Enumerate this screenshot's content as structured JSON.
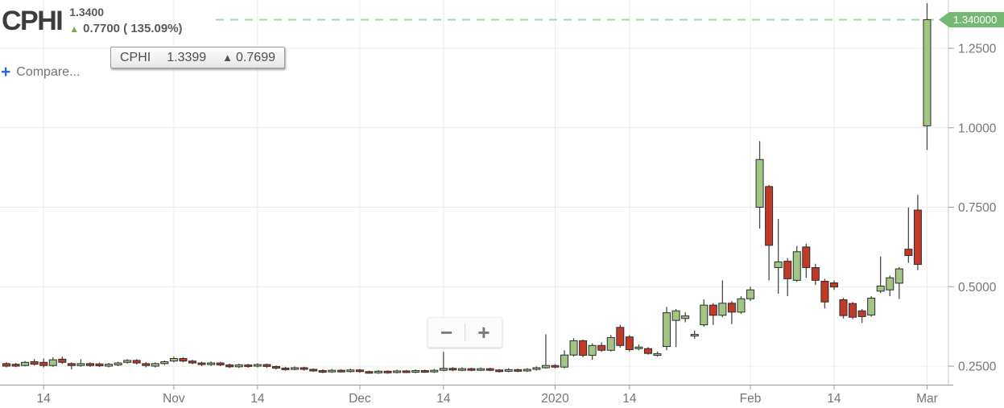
{
  "header": {
    "symbol": "CPHI",
    "price": "1.3400",
    "change_arrow": "▲",
    "change": "0.7700 ( 135.09%)"
  },
  "tooltip": {
    "symbol": "CPHI",
    "price": "1.3399",
    "arrow": "▲",
    "change": "0.7699"
  },
  "compare": {
    "plus_icon": "+",
    "label": "Compare..."
  },
  "zoom_controls": {
    "zoom_out_label": "−",
    "zoom_in_label": "+"
  },
  "price_badge": {
    "text": "1.340000"
  },
  "colors": {
    "up_fill": "#a2c585",
    "down_fill": "#c03a27",
    "candle_border": "#2d2d2d",
    "wick": "#4a4a4a",
    "grid": "#ececec",
    "axis_line": "#9a9a9a",
    "axis_text": "#757575",
    "plot_border": "#c9c9c9",
    "dashed_line": "#a8d5a8",
    "badge_bg": "#74b874",
    "badge_text": "#ffffff",
    "header_arrow_green": "#76b043",
    "compare_plus_blue": "#2a66dd"
  },
  "chart_data": {
    "type": "candlestick",
    "title": "CPHI daily price chart, Oct 2019 - Mar 2020",
    "series_name": "CPHI",
    "current_price": 1.34,
    "current_price_label": "1.340000",
    "grid": true,
    "y_axis": {
      "side": "right",
      "tick_values": [
        1.25,
        1.0,
        0.75,
        0.5,
        0.25
      ],
      "tick_labels": [
        "1.2500",
        "1.0000",
        "0.7500",
        "0.5000",
        "0.2500"
      ],
      "range": [
        0.197,
        1.4
      ]
    },
    "x_axis": {
      "tick_labels": [
        "14",
        "Nov",
        "14",
        "Dec",
        "14",
        "2020",
        "14",
        "Feb",
        "14",
        "Mar"
      ],
      "tick_candle_index": [
        4,
        18,
        27,
        38,
        47,
        59,
        67,
        80,
        89,
        99
      ]
    },
    "ohlc_format": [
      "open",
      "high",
      "low",
      "close"
    ],
    "candles": [
      [
        0.258,
        0.262,
        0.246,
        0.25
      ],
      [
        0.256,
        0.26,
        0.247,
        0.25
      ],
      [
        0.252,
        0.266,
        0.249,
        0.262
      ],
      [
        0.264,
        0.272,
        0.252,
        0.256
      ],
      [
        0.262,
        0.274,
        0.246,
        0.252
      ],
      [
        0.252,
        0.278,
        0.248,
        0.27
      ],
      [
        0.272,
        0.28,
        0.257,
        0.262
      ],
      [
        0.258,
        0.262,
        0.24,
        0.252
      ],
      [
        0.252,
        0.272,
        0.248,
        0.258
      ],
      [
        0.258,
        0.262,
        0.248,
        0.252
      ],
      [
        0.257,
        0.261,
        0.247,
        0.251
      ],
      [
        0.25,
        0.26,
        0.246,
        0.256
      ],
      [
        0.254,
        0.264,
        0.25,
        0.26
      ],
      [
        0.262,
        0.272,
        0.258,
        0.268
      ],
      [
        0.268,
        0.272,
        0.255,
        0.26
      ],
      [
        0.258,
        0.263,
        0.246,
        0.252
      ],
      [
        0.25,
        0.262,
        0.246,
        0.258
      ],
      [
        0.258,
        0.268,
        0.254,
        0.264
      ],
      [
        0.266,
        0.28,
        0.262,
        0.274
      ],
      [
        0.274,
        0.278,
        0.262,
        0.266
      ],
      [
        0.266,
        0.27,
        0.256,
        0.26
      ],
      [
        0.26,
        0.264,
        0.25,
        0.255
      ],
      [
        0.255,
        0.265,
        0.251,
        0.26
      ],
      [
        0.26,
        0.263,
        0.25,
        0.254
      ],
      [
        0.254,
        0.258,
        0.244,
        0.248
      ],
      [
        0.248,
        0.258,
        0.244,
        0.254
      ],
      [
        0.254,
        0.257,
        0.245,
        0.249
      ],
      [
        0.25,
        0.259,
        0.246,
        0.255
      ],
      [
        0.255,
        0.258,
        0.245,
        0.249
      ],
      [
        0.249,
        0.252,
        0.24,
        0.244
      ],
      [
        0.244,
        0.248,
        0.236,
        0.24
      ],
      [
        0.24,
        0.249,
        0.237,
        0.245
      ],
      [
        0.245,
        0.248,
        0.236,
        0.24
      ],
      [
        0.24,
        0.243,
        0.232,
        0.236
      ],
      [
        0.236,
        0.24,
        0.228,
        0.232
      ],
      [
        0.232,
        0.241,
        0.229,
        0.237
      ],
      [
        0.237,
        0.24,
        0.23,
        0.233
      ],
      [
        0.233,
        0.242,
        0.23,
        0.238
      ],
      [
        0.238,
        0.241,
        0.229,
        0.233
      ],
      [
        0.233,
        0.236,
        0.226,
        0.229
      ],
      [
        0.229,
        0.238,
        0.226,
        0.234
      ],
      [
        0.234,
        0.237,
        0.226,
        0.23
      ],
      [
        0.23,
        0.239,
        0.227,
        0.235
      ],
      [
        0.235,
        0.238,
        0.228,
        0.231
      ],
      [
        0.231,
        0.24,
        0.228,
        0.236
      ],
      [
        0.236,
        0.239,
        0.229,
        0.232
      ],
      [
        0.232,
        0.241,
        0.229,
        0.237
      ],
      [
        0.237,
        0.295,
        0.234,
        0.243
      ],
      [
        0.243,
        0.247,
        0.234,
        0.238
      ],
      [
        0.238,
        0.246,
        0.234,
        0.242
      ],
      [
        0.242,
        0.245,
        0.234,
        0.238
      ],
      [
        0.238,
        0.246,
        0.235,
        0.242
      ],
      [
        0.242,
        0.245,
        0.234,
        0.238
      ],
      [
        0.238,
        0.241,
        0.23,
        0.234
      ],
      [
        0.234,
        0.243,
        0.231,
        0.239
      ],
      [
        0.239,
        0.242,
        0.231,
        0.235
      ],
      [
        0.235,
        0.244,
        0.232,
        0.24
      ],
      [
        0.24,
        0.249,
        0.236,
        0.245
      ],
      [
        0.245,
        0.35,
        0.242,
        0.252
      ],
      [
        0.252,
        0.256,
        0.243,
        0.247
      ],
      [
        0.247,
        0.3,
        0.243,
        0.285
      ],
      [
        0.285,
        0.338,
        0.28,
        0.33
      ],
      [
        0.33,
        0.334,
        0.278,
        0.284
      ],
      [
        0.284,
        0.322,
        0.27,
        0.315
      ],
      [
        0.315,
        0.325,
        0.295,
        0.3
      ],
      [
        0.3,
        0.348,
        0.296,
        0.34
      ],
      [
        0.372,
        0.38,
        0.308,
        0.315
      ],
      [
        0.342,
        0.348,
        0.296,
        0.302
      ],
      [
        0.305,
        0.318,
        0.3,
        0.31
      ],
      [
        0.305,
        0.31,
        0.286,
        0.29
      ],
      [
        0.289,
        0.296,
        0.28,
        0.289
      ],
      [
        0.312,
        0.436,
        0.3,
        0.418
      ],
      [
        0.394,
        0.43,
        0.31,
        0.424
      ],
      [
        0.4,
        0.42,
        0.388,
        0.408
      ],
      [
        0.348,
        0.362,
        0.336,
        0.35
      ],
      [
        0.38,
        0.46,
        0.374,
        0.442
      ],
      [
        0.442,
        0.448,
        0.38,
        0.41
      ],
      [
        0.41,
        0.52,
        0.404,
        0.448
      ],
      [
        0.448,
        0.455,
        0.382,
        0.42
      ],
      [
        0.42,
        0.47,
        0.414,
        0.462
      ],
      [
        0.462,
        0.5,
        0.455,
        0.49
      ],
      [
        0.75,
        0.958,
        0.683,
        0.9
      ],
      [
        0.815,
        0.82,
        0.52,
        0.63
      ],
      [
        0.56,
        0.713,
        0.478,
        0.578
      ],
      [
        0.58,
        0.59,
        0.47,
        0.525
      ],
      [
        0.52,
        0.628,
        0.515,
        0.61
      ],
      [
        0.625,
        0.635,
        0.528,
        0.56
      ],
      [
        0.56,
        0.572,
        0.505,
        0.52
      ],
      [
        0.517,
        0.525,
        0.432,
        0.452
      ],
      [
        0.512,
        0.52,
        0.49,
        0.499
      ],
      [
        0.459,
        0.465,
        0.4,
        0.409
      ],
      [
        0.447,
        0.452,
        0.398,
        0.404
      ],
      [
        0.424,
        0.43,
        0.386,
        0.406
      ],
      [
        0.411,
        0.47,
        0.405,
        0.464
      ],
      [
        0.486,
        0.595,
        0.48,
        0.502
      ],
      [
        0.49,
        0.535,
        0.47,
        0.528
      ],
      [
        0.511,
        0.562,
        0.461,
        0.556
      ],
      [
        0.618,
        0.749,
        0.575,
        0.598
      ],
      [
        0.741,
        0.789,
        0.552,
        0.57
      ],
      [
        1.006,
        1.392,
        0.93,
        1.34
      ]
    ]
  }
}
